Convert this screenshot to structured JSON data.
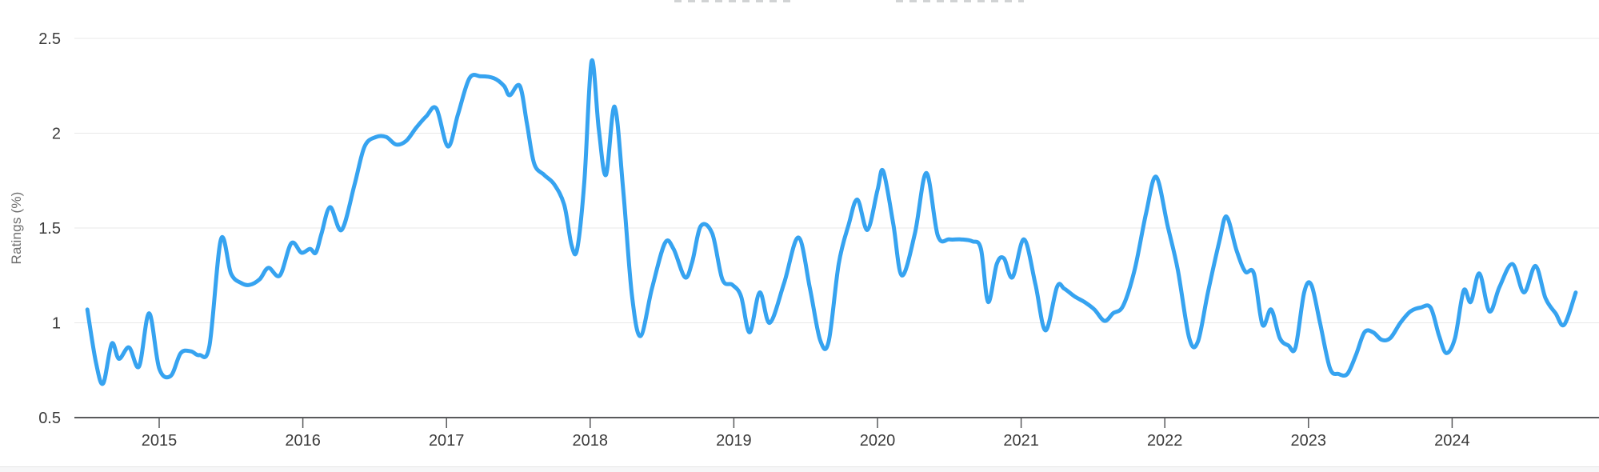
{
  "theme": {
    "background": "#ffffff",
    "line_color": "#36a3f0",
    "grid_color": "#e8e8e8",
    "axis_line_color": "#595a5c",
    "tick_text_color": "#3b3b3b",
    "axis_title_color": "#6d6d6d"
  },
  "chart_data": {
    "type": "line",
    "title": "",
    "xlabel": "",
    "ylabel": "Ratings (%)",
    "legend": "none",
    "grid": "horizontal",
    "xlim": [
      2014.41,
      2025.02
    ],
    "ylim": [
      0.5,
      2.6
    ],
    "x_tick_values": [
      2015,
      2016,
      2017,
      2018,
      2019,
      2020,
      2021,
      2022,
      2023,
      2024
    ],
    "x_tick_labels": [
      "2015",
      "2016",
      "2017",
      "2018",
      "2019",
      "2020",
      "2021",
      "2022",
      "2023",
      "2024"
    ],
    "y_tick_values": [
      0.5,
      1,
      1.5,
      2,
      2.5
    ],
    "y_tick_labels": [
      "0.5",
      "1",
      "1.5",
      "2",
      "2.5"
    ],
    "series": [
      {
        "name": "ratings",
        "color": "#36a3f0",
        "points": [
          [
            2014.5,
            1.07
          ],
          [
            2014.56,
            0.79
          ],
          [
            2014.61,
            0.68
          ],
          [
            2014.67,
            0.89
          ],
          [
            2014.72,
            0.81
          ],
          [
            2014.79,
            0.87
          ],
          [
            2014.86,
            0.77
          ],
          [
            2014.93,
            1.05
          ],
          [
            2015.0,
            0.76
          ],
          [
            2015.08,
            0.72
          ],
          [
            2015.15,
            0.84
          ],
          [
            2015.22,
            0.85
          ],
          [
            2015.28,
            0.83
          ],
          [
            2015.35,
            0.88
          ],
          [
            2015.43,
            1.44
          ],
          [
            2015.5,
            1.26
          ],
          [
            2015.57,
            1.21
          ],
          [
            2015.63,
            1.2
          ],
          [
            2015.7,
            1.23
          ],
          [
            2015.76,
            1.29
          ],
          [
            2015.84,
            1.25
          ],
          [
            2015.92,
            1.42
          ],
          [
            2015.99,
            1.37
          ],
          [
            2016.05,
            1.39
          ],
          [
            2016.09,
            1.37
          ],
          [
            2016.13,
            1.47
          ],
          [
            2016.19,
            1.61
          ],
          [
            2016.27,
            1.49
          ],
          [
            2016.36,
            1.73
          ],
          [
            2016.43,
            1.93
          ],
          [
            2016.51,
            1.98
          ],
          [
            2016.58,
            1.98
          ],
          [
            2016.65,
            1.94
          ],
          [
            2016.72,
            1.96
          ],
          [
            2016.79,
            2.03
          ],
          [
            2016.86,
            2.09
          ],
          [
            2016.93,
            2.13
          ],
          [
            2017.01,
            1.93
          ],
          [
            2017.08,
            2.1
          ],
          [
            2017.16,
            2.29
          ],
          [
            2017.24,
            2.3
          ],
          [
            2017.33,
            2.29
          ],
          [
            2017.4,
            2.25
          ],
          [
            2017.44,
            2.2
          ],
          [
            2017.51,
            2.25
          ],
          [
            2017.56,
            2.05
          ],
          [
            2017.61,
            1.84
          ],
          [
            2017.68,
            1.78
          ],
          [
            2017.75,
            1.73
          ],
          [
            2017.82,
            1.62
          ],
          [
            2017.87,
            1.41
          ],
          [
            2017.91,
            1.39
          ],
          [
            2017.96,
            1.75
          ],
          [
            2018.01,
            2.38
          ],
          [
            2018.06,
            2.02
          ],
          [
            2018.11,
            1.78
          ],
          [
            2018.17,
            2.14
          ],
          [
            2018.23,
            1.7
          ],
          [
            2018.29,
            1.15
          ],
          [
            2018.35,
            0.93
          ],
          [
            2018.43,
            1.18
          ],
          [
            2018.52,
            1.42
          ],
          [
            2018.58,
            1.39
          ],
          [
            2018.66,
            1.24
          ],
          [
            2018.71,
            1.32
          ],
          [
            2018.77,
            1.51
          ],
          [
            2018.85,
            1.47
          ],
          [
            2018.92,
            1.23
          ],
          [
            2018.99,
            1.2
          ],
          [
            2019.05,
            1.14
          ],
          [
            2019.11,
            0.95
          ],
          [
            2019.18,
            1.16
          ],
          [
            2019.25,
            1.0
          ],
          [
            2019.35,
            1.21
          ],
          [
            2019.45,
            1.45
          ],
          [
            2019.53,
            1.18
          ],
          [
            2019.6,
            0.91
          ],
          [
            2019.66,
            0.9
          ],
          [
            2019.73,
            1.31
          ],
          [
            2019.8,
            1.52
          ],
          [
            2019.86,
            1.65
          ],
          [
            2019.93,
            1.49
          ],
          [
            2020.0,
            1.7
          ],
          [
            2020.04,
            1.8
          ],
          [
            2020.11,
            1.52
          ],
          [
            2020.17,
            1.25
          ],
          [
            2020.26,
            1.47
          ],
          [
            2020.34,
            1.79
          ],
          [
            2020.42,
            1.46
          ],
          [
            2020.5,
            1.44
          ],
          [
            2020.58,
            1.44
          ],
          [
            2020.66,
            1.43
          ],
          [
            2020.72,
            1.39
          ],
          [
            2020.77,
            1.11
          ],
          [
            2020.83,
            1.31
          ],
          [
            2020.88,
            1.34
          ],
          [
            2020.94,
            1.24
          ],
          [
            2021.02,
            1.44
          ],
          [
            2021.1,
            1.2
          ],
          [
            2021.17,
            0.96
          ],
          [
            2021.25,
            1.19
          ],
          [
            2021.3,
            1.18
          ],
          [
            2021.37,
            1.14
          ],
          [
            2021.44,
            1.11
          ],
          [
            2021.51,
            1.07
          ],
          [
            2021.58,
            1.01
          ],
          [
            2021.64,
            1.05
          ],
          [
            2021.71,
            1.09
          ],
          [
            2021.79,
            1.28
          ],
          [
            2021.87,
            1.58
          ],
          [
            2021.94,
            1.77
          ],
          [
            2022.02,
            1.51
          ],
          [
            2022.09,
            1.28
          ],
          [
            2022.17,
            0.92
          ],
          [
            2022.23,
            0.9
          ],
          [
            2022.3,
            1.16
          ],
          [
            2022.38,
            1.43
          ],
          [
            2022.43,
            1.56
          ],
          [
            2022.5,
            1.38
          ],
          [
            2022.56,
            1.27
          ],
          [
            2022.62,
            1.26
          ],
          [
            2022.68,
            0.99
          ],
          [
            2022.74,
            1.07
          ],
          [
            2022.8,
            0.92
          ],
          [
            2022.86,
            0.88
          ],
          [
            2022.91,
            0.87
          ],
          [
            2022.97,
            1.16
          ],
          [
            2023.02,
            1.2
          ],
          [
            2023.08,
            1.0
          ],
          [
            2023.15,
            0.76
          ],
          [
            2023.21,
            0.73
          ],
          [
            2023.27,
            0.73
          ],
          [
            2023.33,
            0.83
          ],
          [
            2023.39,
            0.95
          ],
          [
            2023.45,
            0.95
          ],
          [
            2023.51,
            0.91
          ],
          [
            2023.57,
            0.92
          ],
          [
            2023.64,
            1.0
          ],
          [
            2023.71,
            1.06
          ],
          [
            2023.78,
            1.08
          ],
          [
            2023.85,
            1.08
          ],
          [
            2023.91,
            0.93
          ],
          [
            2023.96,
            0.84
          ],
          [
            2024.02,
            0.92
          ],
          [
            2024.08,
            1.17
          ],
          [
            2024.13,
            1.11
          ],
          [
            2024.19,
            1.26
          ],
          [
            2024.26,
            1.06
          ],
          [
            2024.33,
            1.19
          ],
          [
            2024.42,
            1.31
          ],
          [
            2024.5,
            1.16
          ],
          [
            2024.58,
            1.3
          ],
          [
            2024.65,
            1.13
          ],
          [
            2024.72,
            1.05
          ],
          [
            2024.78,
            0.99
          ],
          [
            2024.86,
            1.16
          ]
        ]
      }
    ]
  }
}
